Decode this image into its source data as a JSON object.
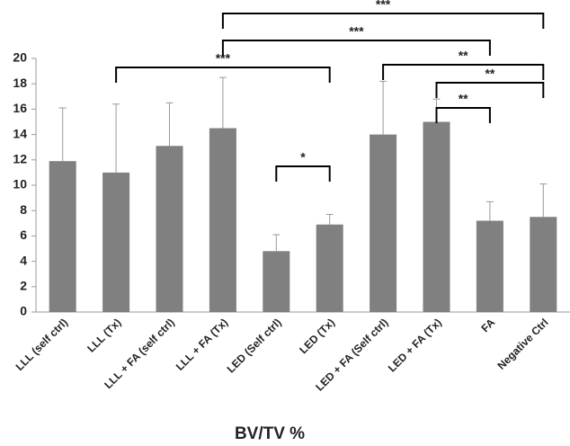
{
  "chart_data": {
    "type": "bar",
    "title": "BV/TV %",
    "categories": [
      "LLL  (self ctrl)",
      "LLL  (Tx)",
      "LLL + FA (self ctrl)",
      "LLL + FA (Tx)",
      "LED (Self ctrl)",
      "LED (Tx)",
      "LED + FA (Self ctrl)",
      "LED + FA (Tx)",
      "FA",
      "Negative Ctrl"
    ],
    "values": [
      11.9,
      11.0,
      13.1,
      14.5,
      4.8,
      6.9,
      14.0,
      15.0,
      7.2,
      7.5
    ],
    "errors": [
      4.2,
      5.4,
      3.4,
      4.0,
      1.3,
      0.8,
      4.2,
      1.8,
      1.5,
      2.6
    ],
    "color": "#808080",
    "ylim": [
      0,
      20
    ],
    "yticks": [
      0,
      2,
      4,
      6,
      8,
      10,
      12,
      14,
      16,
      18,
      20
    ],
    "grid": false,
    "brackets": [
      {
        "between": [
          1,
          5
        ],
        "label": "***"
      },
      {
        "between": [
          4,
          5
        ],
        "label": "*"
      },
      {
        "between": [
          3,
          9
        ],
        "label": "***"
      },
      {
        "between": [
          3,
          8
        ],
        "label": "***"
      },
      {
        "between": [
          6,
          9
        ],
        "label": "**"
      },
      {
        "between": [
          7,
          9
        ],
        "label": "**"
      },
      {
        "between": [
          7,
          8
        ],
        "label": "**"
      }
    ]
  }
}
